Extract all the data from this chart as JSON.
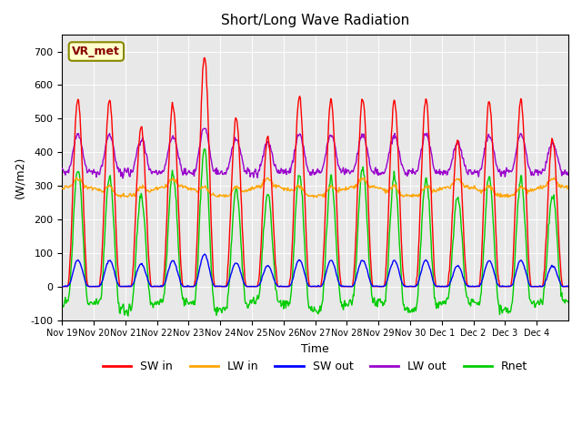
{
  "title": "Short/Long Wave Radiation",
  "xlabel": "Time",
  "ylabel": "(W/m2)",
  "ylim": [
    -100,
    750
  ],
  "yticks": [
    -100,
    0,
    100,
    200,
    300,
    400,
    500,
    600,
    700
  ],
  "annotation": "VR_met",
  "bg_color": "#e8e8e8",
  "colors": {
    "SW_in": "#ff0000",
    "LW_in": "#ffa500",
    "SW_out": "#0000ff",
    "LW_out": "#9900cc",
    "Rnet": "#00cc00"
  },
  "legend_labels": [
    "SW in",
    "LW in",
    "SW out",
    "LW out",
    "Rnet"
  ],
  "x_tick_labels": [
    "Nov 19",
    "Nov 20",
    "Nov 21",
    "Nov 22",
    "Nov 23",
    "Nov 24",
    "Nov 25",
    "Nov 26",
    "Nov 27",
    "Nov 28",
    "Nov 29",
    "Nov 30",
    "Dec 1",
    "Dec 2",
    "Dec 3",
    "Dec 4"
  ],
  "n_days": 16,
  "pts_per_day": 48,
  "day_peaks_SW": [
    560,
    555,
    475,
    540,
    685,
    500,
    440,
    565,
    555,
    560,
    555,
    555,
    435,
    550,
    555,
    440
  ]
}
